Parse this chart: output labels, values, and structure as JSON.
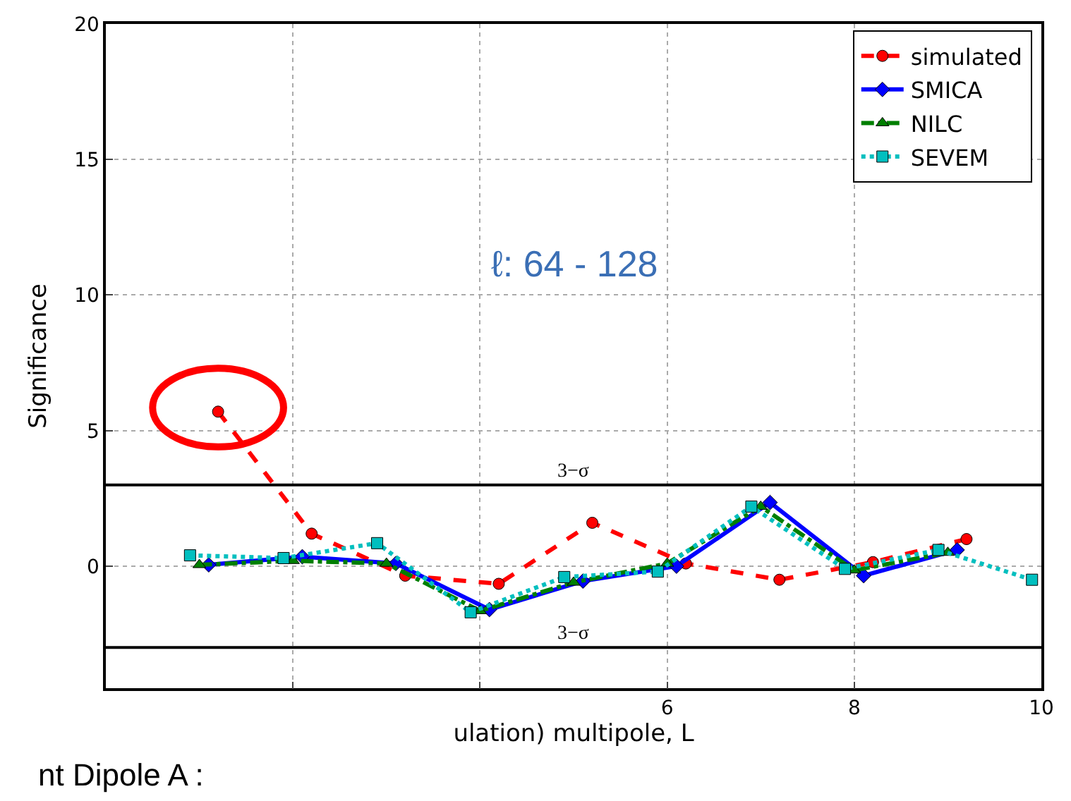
{
  "chart_data": {
    "type": "line",
    "xlabel": "ulation) multipole, L",
    "ylabel": "Significance",
    "xlim": [
      0,
      10
    ],
    "xticks": [
      {
        "value": 2,
        "label": null
      },
      {
        "value": 4,
        "label": null
      },
      6,
      8,
      10
    ],
    "ylim": [
      -4.5,
      20
    ],
    "yticks": [
      0,
      5,
      10,
      15,
      20
    ],
    "grid": true,
    "legend": "top right",
    "series": [
      {
        "name": "simulated",
        "color": "#ff0000",
        "marker": "circle",
        "line_style": "dashed",
        "x": [
          1.2,
          2.2,
          3.2,
          4.2,
          5.2,
          6.2,
          7.2,
          8.2,
          9.2
        ],
        "values": [
          5.7,
          1.2,
          -0.35,
          -0.65,
          1.6,
          0.1,
          -0.5,
          0.15,
          1.0
        ]
      },
      {
        "name": "SMICA",
        "color": "#0000ff",
        "marker": "diamond",
        "line_style": "solid",
        "x": [
          1.1,
          2.1,
          3.1,
          4.1,
          5.1,
          6.1,
          7.1,
          8.1,
          9.1
        ],
        "values": [
          0.05,
          0.35,
          0.1,
          -1.6,
          -0.55,
          0.0,
          2.35,
          -0.35,
          0.6
        ]
      },
      {
        "name": "NILC",
        "color": "#007f00",
        "marker": "triangle",
        "line_style": "dashdot",
        "x": [
          1.0,
          2.0,
          3.0,
          4.0,
          5.0,
          6.0,
          7.0,
          8.0,
          9.0
        ],
        "values": [
          0.05,
          0.2,
          0.1,
          -1.65,
          -0.6,
          0.1,
          2.2,
          -0.15,
          0.5
        ]
      },
      {
        "name": "SEVEM",
        "color": "#00bfbf",
        "marker": "square",
        "line_style": "dotted",
        "x": [
          0.9,
          1.9,
          2.9,
          3.9,
          4.9,
          5.9,
          6.9,
          7.9,
          8.9,
          9.9
        ],
        "values": [
          0.4,
          0.3,
          0.85,
          -1.7,
          -0.4,
          -0.2,
          2.2,
          -0.1,
          0.6,
          -0.5
        ]
      }
    ],
    "ref_lines": [
      {
        "axis": "y",
        "value": 3,
        "label": "3−σ",
        "color": "#000000"
      },
      {
        "axis": "y",
        "value": -3,
        "label": "3−σ",
        "color": "#000000"
      }
    ],
    "annotations": [
      "ℓ: 64 - 128",
      "nt Dipole A :"
    ]
  }
}
